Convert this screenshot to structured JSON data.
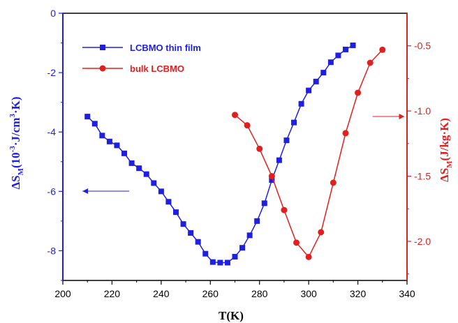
{
  "chart_data": {
    "type": "line",
    "xlabel": "T(K)",
    "xlim": [
      200,
      340
    ],
    "x_ticks": [
      200,
      220,
      240,
      260,
      280,
      300,
      320,
      340
    ],
    "y_left": {
      "label_main": "ΔS",
      "label_sub": "M",
      "label_rest": "(10",
      "label_sup": "-3",
      "label_mid": "·J/cm",
      "label_sup2": "3",
      "label_end": "·K)",
      "lim": [
        -9,
        0
      ],
      "ticks": [
        0,
        -2,
        -4,
        -6,
        -8
      ],
      "color": "#1f1fe0"
    },
    "y_right": {
      "label_main": "ΔS",
      "label_sub": "M",
      "label_rest": "(J/kg·K)",
      "lim": [
        -2.3,
        -0.25
      ],
      "ticks": [
        -0.5,
        -1.0,
        -1.5,
        -2.0
      ],
      "tick_labels": [
        "-0.5",
        "-1.0",
        "-1.5",
        "-2.0"
      ],
      "color": "#e01f1f"
    },
    "legend": {
      "placement": "top-left"
    },
    "series": [
      {
        "name": "LCBMO thin film",
        "axis": "left",
        "marker": "square",
        "color": "#1f1fe0",
        "x": [
          210,
          213,
          216,
          219,
          222,
          225,
          228,
          231,
          234,
          237,
          240,
          243,
          246,
          249,
          252,
          255,
          258,
          261,
          264,
          267,
          270,
          273,
          276,
          279,
          282,
          285,
          288,
          291,
          294,
          297,
          300,
          303,
          306,
          309,
          312,
          315,
          318
        ],
        "y": [
          -3.48,
          -3.72,
          -4.12,
          -4.32,
          -4.45,
          -4.72,
          -5.05,
          -5.22,
          -5.42,
          -5.72,
          -6.0,
          -6.35,
          -6.7,
          -7.1,
          -7.4,
          -7.7,
          -8.1,
          -8.38,
          -8.4,
          -8.4,
          -8.2,
          -7.9,
          -7.48,
          -7.0,
          -6.4,
          -5.62,
          -4.95,
          -4.28,
          -3.68,
          -3.05,
          -2.6,
          -2.3,
          -2.0,
          -1.65,
          -1.42,
          -1.22,
          -1.08
        ]
      },
      {
        "name": "bulk LCBMO",
        "axis": "right",
        "marker": "circle",
        "color": "#e01f1f",
        "x": [
          270,
          275,
          280,
          285,
          290,
          295,
          300,
          305,
          310,
          315,
          320,
          325,
          330
        ],
        "y": [
          -1.03,
          -1.11,
          -1.29,
          -1.5,
          -1.76,
          -2.01,
          -2.12,
          -1.93,
          -1.55,
          -1.17,
          -0.86,
          -0.63,
          -0.53
        ]
      }
    ],
    "annotations": [
      {
        "type": "arrow",
        "direction": "left",
        "axis_hint": "left"
      },
      {
        "type": "arrow",
        "direction": "right",
        "axis_hint": "right"
      }
    ]
  }
}
